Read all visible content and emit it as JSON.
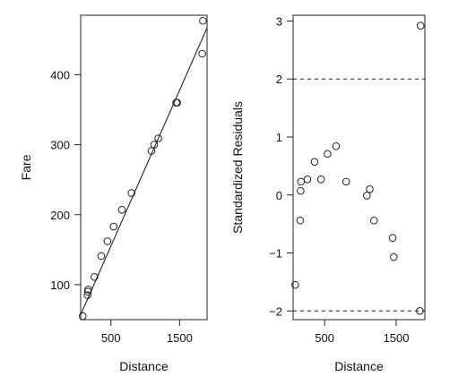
{
  "chart_data": [
    {
      "type": "scatter",
      "xlabel": "Distance",
      "ylabel": "Fare",
      "xlim": [
        60,
        1900
      ],
      "ylim": [
        50,
        485
      ],
      "x_ticks": [
        500,
        1500
      ],
      "y_ticks": [
        100,
        200,
        300,
        400
      ],
      "fit_line": {
        "x": [
          60,
          1900
        ],
        "y": [
          57,
          467
        ]
      },
      "points": [
        {
          "x": 90,
          "y": 55
        },
        {
          "x": 160,
          "y": 85
        },
        {
          "x": 165,
          "y": 90
        },
        {
          "x": 170,
          "y": 93
        },
        {
          "x": 260,
          "y": 111
        },
        {
          "x": 360,
          "y": 141
        },
        {
          "x": 450,
          "y": 162
        },
        {
          "x": 540,
          "y": 183
        },
        {
          "x": 660,
          "y": 207
        },
        {
          "x": 800,
          "y": 231
        },
        {
          "x": 1090,
          "y": 291
        },
        {
          "x": 1130,
          "y": 300
        },
        {
          "x": 1190,
          "y": 309
        },
        {
          "x": 1450,
          "y": 360
        },
        {
          "x": 1465,
          "y": 360
        },
        {
          "x": 1830,
          "y": 430
        },
        {
          "x": 1840,
          "y": 477
        }
      ]
    },
    {
      "type": "scatter",
      "xlabel": "Distance",
      "ylabel": "Standardized Residuals",
      "xlim": [
        60,
        1900
      ],
      "ylim": [
        -2.15,
        3.1
      ],
      "x_ticks": [
        500,
        1500
      ],
      "y_ticks": [
        -2,
        -1,
        0,
        1,
        2,
        3
      ],
      "reference_lines": [
        2,
        -2
      ],
      "points": [
        {
          "x": 90,
          "y": -1.55
        },
        {
          "x": 160,
          "y": -0.44
        },
        {
          "x": 165,
          "y": 0.07
        },
        {
          "x": 170,
          "y": 0.23
        },
        {
          "x": 260,
          "y": 0.27
        },
        {
          "x": 360,
          "y": 0.57
        },
        {
          "x": 450,
          "y": 0.27
        },
        {
          "x": 540,
          "y": 0.71
        },
        {
          "x": 660,
          "y": 0.84
        },
        {
          "x": 800,
          "y": 0.23
        },
        {
          "x": 1090,
          "y": -0.01
        },
        {
          "x": 1130,
          "y": 0.1
        },
        {
          "x": 1190,
          "y": -0.44
        },
        {
          "x": 1450,
          "y": -0.74
        },
        {
          "x": 1465,
          "y": -1.07
        },
        {
          "x": 1830,
          "y": -2.0
        },
        {
          "x": 1840,
          "y": 2.92
        }
      ]
    }
  ]
}
